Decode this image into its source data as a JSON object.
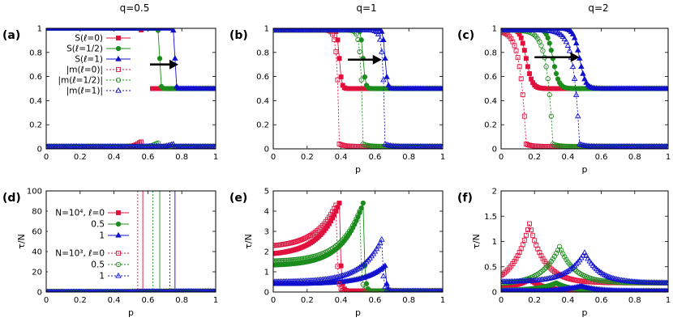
{
  "colors": {
    "l0": "#e0103c",
    "l05": "#1c8c1c",
    "l1": "#1010cc",
    "arrow": "#000000"
  },
  "column_titles": [
    "q=0.5",
    "q=1",
    "q=2"
  ],
  "legends": {
    "top": [
      "S(ℓ=0)",
      "S(ℓ=1/2)",
      "S(ℓ=1)",
      "|m(ℓ=0)|",
      "|m(ℓ=1/2)|",
      "|m(ℓ=1)|"
    ],
    "bottom": [
      "N=10⁴, ℓ=0",
      "0.5",
      "1",
      "N=10³, ℓ=0",
      "0.5",
      "1"
    ]
  },
  "chart_data": [
    {
      "panel": "(a)",
      "type": "line",
      "title": "q=0.5",
      "xlabel": "",
      "ylabel": "",
      "xlim": [
        0,
        1
      ],
      "ylim": [
        0,
        1
      ],
      "xticks": [
        "0",
        "0.2",
        "0.4",
        "0.6",
        "0.8",
        "1"
      ],
      "yticks": [
        "0",
        "0.2",
        "0.4",
        "0.6",
        "0.8",
        "1"
      ],
      "transitions": {
        "l0": 0.57,
        "l05": 0.67,
        "l1": 0.76
      },
      "S_values": {
        "high": 1.0,
        "low": 0.5
      },
      "m_peak": {
        "l0": 0.06,
        "l05": 0.05,
        "l1": 0.04
      },
      "m_baseline": 0.02,
      "arrow": {
        "from": [
          0.6,
          0.7
        ],
        "to": [
          0.78,
          0.7
        ]
      }
    },
    {
      "panel": "(b)",
      "type": "line",
      "title": "q=1",
      "xlabel": "p",
      "ylabel": "",
      "xlim": [
        0,
        1
      ],
      "ylim": [
        0,
        1
      ],
      "xticks": [
        "0",
        "0.2",
        "0.4",
        "0.6",
        "0.8",
        "1"
      ],
      "yticks": [
        "0",
        "0.2",
        "0.4",
        "0.6",
        "0.8",
        "1"
      ],
      "transitions": {
        "l0": 0.39,
        "l05": 0.53,
        "l1": 0.66
      },
      "S_values": {
        "high": 1.0,
        "low": 0.5
      },
      "arrow": {
        "from": [
          0.44,
          0.74
        ],
        "to": [
          0.64,
          0.74
        ]
      }
    },
    {
      "panel": "(c)",
      "type": "line",
      "title": "q=2",
      "xlabel": "p",
      "ylabel": "",
      "xlim": [
        0,
        1
      ],
      "ylim": [
        0,
        1
      ],
      "xticks": [
        "0",
        "0.2",
        "0.4",
        "0.6",
        "0.8",
        "1"
      ],
      "yticks": [
        "0",
        "0.2",
        "0.4",
        "0.6",
        "0.8",
        "1"
      ],
      "transitions": {
        "l0": 0.15,
        "l05": 0.31,
        "l1": 0.47
      },
      "S_values": {
        "high": 1.0,
        "low": 0.5
      },
      "arrow": {
        "from": [
          0.2,
          0.76
        ],
        "to": [
          0.47,
          0.76
        ]
      }
    },
    {
      "panel": "(d)",
      "type": "line",
      "title": "",
      "xlabel": "p",
      "ylabel": "τ/N",
      "xlim": [
        0,
        1
      ],
      "ylim": [
        0,
        100
      ],
      "xticks": [
        "0",
        "0.2",
        "0.4",
        "0.6",
        "0.8",
        "1"
      ],
      "yticks": [
        "0",
        "20",
        "40",
        "60",
        "80",
        "100"
      ],
      "spikes": {
        "N1e4": {
          "l0": 0.57,
          "l05": 0.67,
          "l1": 0.76
        },
        "N1e3": {
          "l0": 0.54,
          "l05": 0.63,
          "l1": 0.73
        }
      }
    },
    {
      "panel": "(e)",
      "type": "line",
      "title": "",
      "xlabel": "p",
      "ylabel": "τ/N",
      "xlim": [
        0,
        1
      ],
      "ylim": [
        0,
        5
      ],
      "xticks": [
        "0",
        "0.2",
        "0.4",
        "0.6",
        "0.8",
        "1"
      ],
      "yticks": [
        "0",
        "1",
        "2",
        "3",
        "4",
        "5"
      ],
      "peaks": {
        "N1e4": {
          "l0": [
            0.39,
            4.4,
            1.8
          ],
          "l05": [
            0.53,
            4.4,
            1.3
          ],
          "l1": [
            0.66,
            1.3,
            0.4
          ]
        },
        "N1e3": {
          "l0": [
            0.37,
            4.3,
            2.2
          ],
          "l05": [
            0.51,
            4.0,
            1.5
          ],
          "l1": [
            0.64,
            2.6,
            0.5
          ]
        }
      }
    },
    {
      "panel": "(f)",
      "type": "line",
      "title": "",
      "xlabel": "p",
      "ylabel": "τ/N",
      "xlim": [
        0,
        1
      ],
      "ylim": [
        0,
        2
      ],
      "xticks": [
        "0",
        "0.2",
        "0.4",
        "0.6",
        "0.8",
        "1"
      ],
      "yticks": [
        "0",
        "0.5",
        "1",
        "1.5",
        "2"
      ],
      "peaks": {
        "N1e4": {
          "l0": [
            0.17,
            0.25,
            0.05
          ],
          "l05": [
            0.33,
            0.18,
            0.03
          ],
          "l1": [
            0.48,
            0.12,
            0.02
          ]
        },
        "N1e3": {
          "l0": [
            0.17,
            1.35,
            0.1
          ],
          "l05": [
            0.35,
            0.9,
            0.15
          ],
          "l1": [
            0.5,
            0.78,
            0.2
          ]
        }
      }
    }
  ]
}
